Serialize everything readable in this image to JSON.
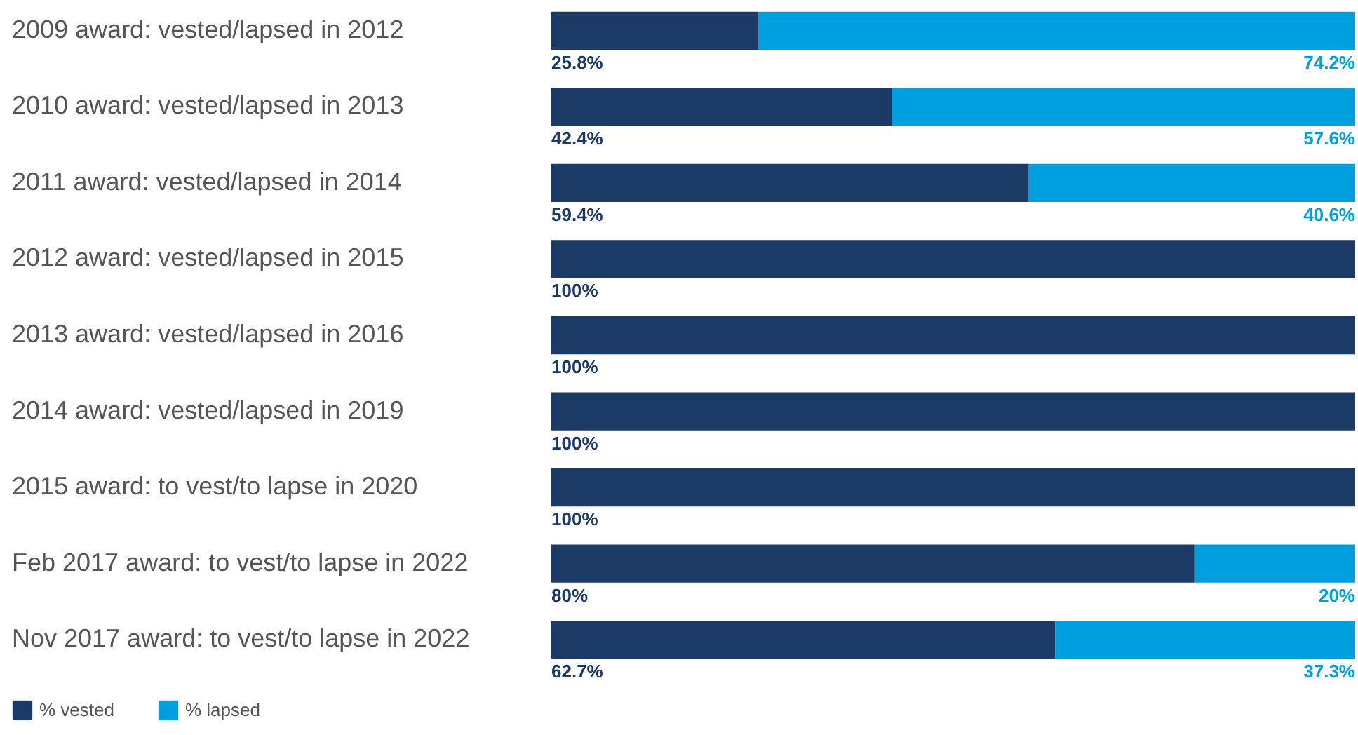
{
  "chart_data": {
    "type": "bar",
    "orientation": "horizontal",
    "stacked": true,
    "categories": [
      "2009 award: vested/lapsed in 2012",
      "2010 award: vested/lapsed in 2013",
      "2011 award: vested/lapsed in 2014",
      "2012 award: vested/lapsed in 2015",
      "2013 award: vested/lapsed in 2016",
      "2014 award: vested/lapsed in 2019",
      "2015 award: to vest/to lapse in 2020",
      "Feb 2017 award: to vest/to lapse in 2022",
      "Nov 2017 award: to vest/to lapse in 2022"
    ],
    "series": [
      {
        "name": "% vested",
        "color": "#1b3a66",
        "values": [
          25.8,
          42.4,
          59.4,
          100,
          100,
          100,
          100,
          80,
          62.7
        ],
        "value_labels": [
          "25.8%",
          "42.4%",
          "59.4%",
          "100%",
          "100%",
          "100%",
          "100%",
          "80%",
          "62.7%"
        ]
      },
      {
        "name": "% lapsed",
        "color": "#00a0df",
        "values": [
          74.2,
          57.6,
          40.6,
          0,
          0,
          0,
          0,
          20,
          37.3
        ],
        "value_labels": [
          "74.2%",
          "57.6%",
          "40.6%",
          null,
          null,
          null,
          null,
          "20%",
          "37.3%"
        ]
      }
    ],
    "xlim": [
      0,
      100
    ],
    "tick_labels": "y",
    "legend": "bottom left"
  }
}
